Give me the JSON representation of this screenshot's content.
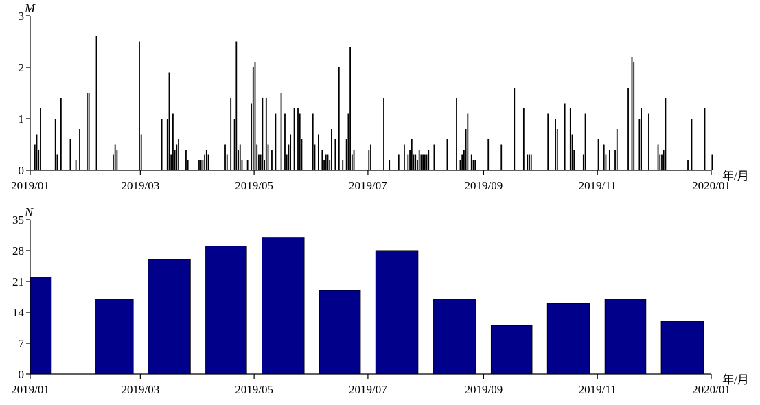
{
  "chart_data": [
    {
      "type": "bar",
      "ylabel": "M",
      "xunit": "年/月",
      "xlim": [
        "2019-01-01",
        "2020-01-01"
      ],
      "ylim": [
        0,
        3
      ],
      "yticks": [
        0,
        1,
        2,
        3
      ],
      "xticks": [
        {
          "date": "2019-01-01",
          "label": "2019/01"
        },
        {
          "date": "2019-03-01",
          "label": "2019/03"
        },
        {
          "date": "2019-05-01",
          "label": "2019/05"
        },
        {
          "date": "2019-07-01",
          "label": "2019/07"
        },
        {
          "date": "2019-09-01",
          "label": "2019/09"
        },
        {
          "date": "2019-11-01",
          "label": "2019/11"
        },
        {
          "date": "2020-01-01",
          "label": "2020/01"
        }
      ],
      "grid": false,
      "color": "#000000",
      "x": [
        "2019-01-03",
        "2019-01-04",
        "2019-01-06",
        "2019-01-14",
        "2019-01-15",
        "2019-01-17",
        "2019-01-22",
        "2019-01-25",
        "2019-01-27",
        "2019-01-31",
        "2019-02-01",
        "2019-02-05",
        "2019-02-14",
        "2019-02-15",
        "2019-02-28",
        "2019-03-01",
        "2019-03-12",
        "2019-03-15",
        "2019-03-16",
        "2019-03-17",
        "2019-03-18",
        "2019-03-19",
        "2019-03-20",
        "2019-03-21",
        "2019-04-02",
        "2019-04-03",
        "2019-04-04",
        "2019-04-05",
        "2019-04-15",
        "2019-04-16",
        "2019-04-18",
        "2019-04-20",
        "2019-04-21",
        "2019-04-22",
        "2019-04-23",
        "2019-04-24",
        "2019-04-27",
        "2019-04-29",
        "2019-04-30",
        "2019-05-01",
        "2019-05-05",
        "2019-05-07",
        "2019-05-12",
        "2019-05-15",
        "2019-05-17",
        "2019-05-18",
        "2019-05-19",
        "2019-05-20",
        "2019-05-22",
        "2019-05-24",
        "2019-05-25",
        "2019-06-01",
        "2019-06-04",
        "2019-06-11",
        "2019-06-13",
        "2019-06-15",
        "2019-06-17",
        "2019-06-19",
        "2019-06-20",
        "2019-06-21",
        "2019-07-09",
        "2019-07-12",
        "2019-07-17",
        "2019-07-20",
        "2019-07-24",
        "2019-08-02",
        "2019-08-05",
        "2019-08-12",
        "2019-08-17",
        "2019-08-19",
        "2019-08-20",
        "2019-08-21",
        "2019-08-22",
        "2019-08-23",
        "2019-08-25",
        "2019-09-03",
        "2019-09-10",
        "2019-09-17",
        "2019-09-22",
        "2019-09-24",
        "2019-09-25",
        "2019-09-26",
        "2019-10-05",
        "2019-10-09",
        "2019-10-10",
        "2019-10-14",
        "2019-10-17",
        "2019-10-18",
        "2019-10-19",
        "2019-10-24",
        "2019-10-25",
        "2019-11-01",
        "2019-11-04",
        "2019-11-05",
        "2019-11-07",
        "2019-11-10",
        "2019-11-11",
        "2019-11-17",
        "2019-11-19",
        "2019-11-20",
        "2019-11-23",
        "2019-11-24",
        "2019-11-28",
        "2019-12-03",
        "2019-12-04",
        "2019-12-05",
        "2019-12-06",
        "2019-12-07",
        "2019-12-19",
        "2019-12-21",
        "2019-12-28",
        "2020-01-01",
        "2019-01-05",
        "2019-02-16",
        "2019-03-25",
        "2019-03-26",
        "2019-04-01",
        "2019-04-06",
        "2019-05-02",
        "2019-05-03",
        "2019-05-04",
        "2019-05-06",
        "2019-05-08",
        "2019-05-10",
        "2019-05-26",
        "2019-06-02",
        "2019-06-06",
        "2019-06-07",
        "2019-06-08",
        "2019-06-09",
        "2019-06-10",
        "2019-06-22",
        "2019-06-23",
        "2019-07-01",
        "2019-07-02",
        "2019-07-22",
        "2019-07-23",
        "2019-07-25",
        "2019-07-26",
        "2019-07-27",
        "2019-07-28",
        "2019-07-29",
        "2019-07-30",
        "2019-07-31",
        "2019-08-01",
        "2019-08-26",
        "2019-08-27"
      ],
      "values": [
        0.5,
        0.7,
        1.2,
        1.0,
        0.3,
        1.4,
        0.6,
        0.2,
        0.8,
        1.5,
        1.5,
        2.6,
        0.3,
        0.5,
        2.5,
        0.7,
        1.0,
        1.0,
        1.9,
        0.3,
        1.1,
        0.4,
        0.5,
        0.6,
        0.2,
        0.2,
        0.3,
        0.4,
        0.5,
        0.3,
        1.4,
        1.0,
        2.5,
        0.4,
        0.5,
        0.2,
        0.2,
        1.3,
        2.0,
        2.1,
        1.4,
        1.4,
        1.1,
        1.5,
        1.1,
        0.3,
        0.5,
        0.7,
        1.2,
        1.2,
        1.1,
        1.1,
        0.7,
        0.8,
        0.6,
        2.0,
        0.2,
        0.6,
        1.1,
        2.4,
        1.4,
        0.2,
        0.3,
        0.5,
        0.6,
        0.4,
        0.5,
        0.6,
        1.4,
        0.2,
        0.3,
        0.4,
        0.8,
        1.1,
        0.3,
        0.6,
        0.5,
        1.6,
        1.2,
        0.3,
        0.3,
        0.3,
        1.1,
        1.0,
        0.8,
        1.3,
        1.2,
        0.7,
        0.4,
        0.3,
        1.1,
        0.6,
        0.5,
        0.3,
        0.4,
        0.4,
        0.8,
        1.6,
        2.2,
        2.1,
        1.0,
        1.2,
        1.1,
        0.5,
        0.3,
        0.3,
        0.4,
        1.4,
        0.2,
        1.0,
        1.2,
        0.3,
        0.4,
        0.4,
        0.4,
        0.2,
        0.2,
        0.3,
        0.5,
        0.3,
        0.3,
        0.2,
        0.5,
        0.4,
        0.6,
        0.5,
        0.4,
        0.2,
        0.3,
        0.3,
        0.2,
        0.3,
        0.4,
        0.4,
        0.5,
        0.3,
        0.4,
        0.3,
        0.3,
        0.2,
        0.4,
        0.3,
        0.3,
        0.3,
        0.3,
        0.2,
        0.2
      ]
    },
    {
      "type": "bar",
      "ylabel": "N",
      "xunit": "年/月",
      "xlim": [
        "2019-01-01",
        "2020-01-01"
      ],
      "ylim": [
        0,
        35
      ],
      "yticks": [
        0,
        7,
        14,
        21,
        28,
        35
      ],
      "xticks": [
        {
          "date": "2019-01-01",
          "label": "2019/01"
        },
        {
          "date": "2019-03-01",
          "label": "2019/03"
        },
        {
          "date": "2019-05-01",
          "label": "2019/05"
        },
        {
          "date": "2019-07-01",
          "label": "2019/07"
        },
        {
          "date": "2019-09-01",
          "label": "2019/09"
        },
        {
          "date": "2019-11-01",
          "label": "2019/11"
        },
        {
          "date": "2020-01-01",
          "label": "2020/01"
        }
      ],
      "grid": false,
      "color": "#00008b",
      "categories": [
        "2019-01",
        "2019-02",
        "2019-03",
        "2019-04",
        "2019-05",
        "2019-06",
        "2019-07",
        "2019-08",
        "2019-09",
        "2019-10",
        "2019-11",
        "2019-12"
      ],
      "values": [
        22,
        17,
        26,
        29,
        31,
        19,
        28,
        17,
        11,
        16,
        17,
        12
      ]
    }
  ]
}
